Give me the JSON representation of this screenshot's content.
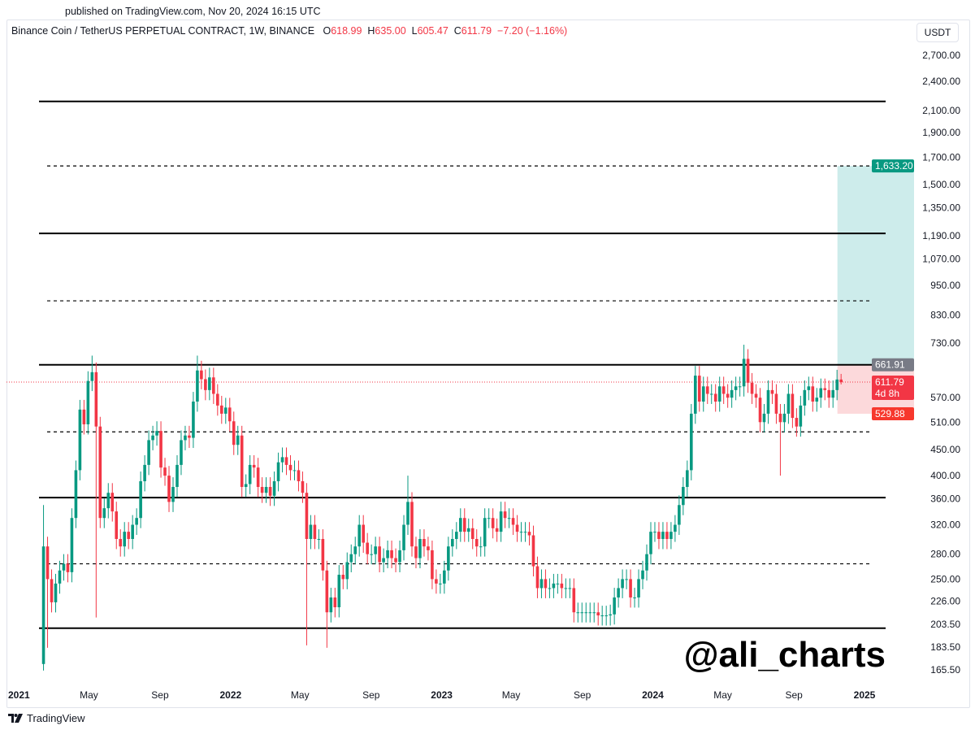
{
  "header": {
    "published": "published on TradingView.com, Nov 20, 2024 16:15 UTC"
  },
  "legend": {
    "symbol": "Binance Coin / TetherUS PERPETUAL CONTRACT, 1W, BINANCE",
    "o_label": "O",
    "o": "618.99",
    "h_label": "H",
    "h": "635.00",
    "l_label": "L",
    "l": "605.47",
    "c_label": "C",
    "c": "611.79",
    "change": "−7.20 (−1.16%)"
  },
  "currency_button": "USDT",
  "footer": {
    "brand": "TradingView",
    "logo_icon": "tradingview-logo-icon"
  },
  "watermark": "@ali_charts",
  "colors": {
    "up": "#089981",
    "down": "#f23645",
    "target_zone": "#cdeceb",
    "stop_zone": "#fcd9db",
    "line": "#000000"
  },
  "chart_data": {
    "type": "candlestick",
    "interval": "1W",
    "x_start": "2021-02-08",
    "first_open": 170,
    "y_scale": "log",
    "ylim": [
      165.5,
      2700
    ],
    "y_ticks": [
      "2,700.00",
      "2,400.00",
      "2,100.00",
      "1,900.00",
      "1,700.00",
      "1,500.00",
      "1,350.00",
      "1,190.00",
      "1,070.00",
      "950.00",
      "830.00",
      "730.00",
      "570.00",
      "510.00",
      "450.00",
      "400.00",
      "360.00",
      "320.00",
      "280.00",
      "250.00",
      "226.00",
      "203.50",
      "183.50",
      "165.50"
    ],
    "x_ticks": [
      {
        "label": "2021",
        "date": "2021-01-01",
        "bold": true
      },
      {
        "label": "May",
        "date": "2021-05-01"
      },
      {
        "label": "Sep",
        "date": "2021-09-01"
      },
      {
        "label": "2022",
        "date": "2022-01-01",
        "bold": true
      },
      {
        "label": "May",
        "date": "2022-05-01"
      },
      {
        "label": "Sep",
        "date": "2022-09-01"
      },
      {
        "label": "2023",
        "date": "2023-01-01",
        "bold": true
      },
      {
        "label": "May",
        "date": "2023-05-01"
      },
      {
        "label": "Sep",
        "date": "2023-09-01"
      },
      {
        "label": "2024",
        "date": "2024-01-01",
        "bold": true
      },
      {
        "label": "May",
        "date": "2024-05-01"
      },
      {
        "label": "Sep",
        "date": "2024-09-01"
      },
      {
        "label": "2025",
        "date": "2025-01-01",
        "bold": true
      }
    ],
    "closes": [
      290,
      250,
      225,
      245,
      260,
      268,
      258,
      330,
      410,
      540,
      505,
      615,
      640,
      500,
      330,
      345,
      370,
      340,
      300,
      290,
      310,
      300,
      320,
      330,
      390,
      420,
      470,
      480,
      490,
      415,
      400,
      355,
      380,
      420,
      470,
      480,
      475,
      560,
      645,
      620,
      590,
      625,
      580,
      550,
      530,
      545,
      512,
      460,
      480,
      380,
      385,
      420,
      415,
      380,
      370,
      380,
      365,
      390,
      425,
      435,
      420,
      410,
      410,
      390,
      370,
      300,
      320,
      300,
      300,
      260,
      215,
      230,
      220,
      255,
      250,
      270,
      280,
      290,
      320,
      295,
      280,
      280,
      290,
      270,
      275,
      285,
      275,
      270,
      285,
      320,
      355,
      290,
      275,
      300,
      290,
      285,
      250,
      245,
      245,
      260,
      290,
      300,
      310,
      330,
      310,
      315,
      300,
      290,
      290,
      330,
      330,
      315,
      310,
      340,
      330,
      330,
      320,
      310,
      310,
      310,
      305,
      265,
      240,
      250,
      240,
      240,
      245,
      245,
      240,
      240,
      240,
      215,
      215,
      215,
      215,
      215,
      215,
      212,
      212,
      212,
      213,
      230,
      240,
      250,
      250,
      230,
      230,
      250,
      260,
      280,
      310,
      310,
      300,
      310,
      300,
      310,
      320,
      350,
      380,
      410,
      530,
      630,
      560,
      600,
      580,
      580,
      560,
      600,
      580,
      570,
      590,
      600,
      600,
      680,
      610,
      580,
      570,
      510,
      530,
      590,
      580,
      530,
      510,
      530,
      580,
      520,
      500,
      550,
      590,
      600,
      560,
      570,
      595,
      590,
      570,
      590,
      618.99,
      611.79
    ],
    "wick_overrides": [
      {
        "i": 0,
        "h": 350,
        "l": 165
      },
      {
        "i": 1,
        "l": 183
      },
      {
        "i": 12,
        "h": 690
      },
      {
        "i": 13,
        "l": 210
      },
      {
        "i": 38,
        "h": 690
      },
      {
        "i": 65,
        "l": 185
      },
      {
        "i": 70,
        "l": 183
      },
      {
        "i": 90,
        "h": 400
      },
      {
        "i": 173,
        "h": 725
      },
      {
        "i": 182,
        "l": 400
      },
      {
        "i": 197,
        "h": 635.0,
        "l": 605.47
      }
    ],
    "levels": [
      {
        "value": 2190,
        "style": "solid"
      },
      {
        "value": 1633.2,
        "style": "dashed"
      },
      {
        "value": 1202,
        "style": "solid"
      },
      {
        "value": 885,
        "style": "dashed"
      },
      {
        "value": 661.91,
        "style": "solid"
      },
      {
        "value": 488,
        "style": "dashed"
      },
      {
        "value": 362,
        "style": "solid"
      },
      {
        "value": 268,
        "style": "dashed"
      },
      {
        "value": 200,
        "style": "solid"
      }
    ],
    "position": {
      "type": "long",
      "entry": 661.91,
      "target": 1633.2,
      "stop": 529.88,
      "start_date": "2024-11-18"
    },
    "price_labels": [
      {
        "text": "1,633.20",
        "value": 1633.2,
        "color": "#089981"
      },
      {
        "text": "661.91",
        "value": 661.91,
        "color": "#787b86"
      },
      {
        "text": "611.79",
        "sub": "4d 8h",
        "value": 611.79,
        "color": "#f23645"
      },
      {
        "text": "529.88",
        "value": 529.88,
        "color": "#f7382d"
      }
    ],
    "last_price": 611.79
  }
}
